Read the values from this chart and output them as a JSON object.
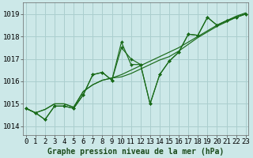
{
  "xlabel": "Graphe pression niveau de la mer (hPa)",
  "background_color": "#cce8e8",
  "line_color": "#1a6b1a",
  "grid_color": "#aacece",
  "x_ticks": [
    0,
    1,
    2,
    3,
    4,
    5,
    6,
    7,
    8,
    9,
    10,
    11,
    12,
    13,
    14,
    15,
    16,
    17,
    18,
    19,
    20,
    21,
    22,
    23
  ],
  "ylim": [
    1013.6,
    1019.5
  ],
  "xlim": [
    -0.3,
    23.3
  ],
  "series": [
    [
      1014.8,
      1014.6,
      1014.3,
      1014.9,
      1014.9,
      1014.8,
      1015.4,
      1016.3,
      1016.4,
      1016.05,
      1017.5,
      1017.0,
      1016.75,
      1015.0,
      1016.3,
      1016.9,
      1017.3,
      1018.1,
      1018.05,
      1018.85,
      1018.5,
      1018.7,
      1018.85,
      1019.0
    ],
    [
      1014.8,
      1014.6,
      1014.3,
      1014.9,
      1014.9,
      1014.8,
      1015.4,
      1016.3,
      1016.4,
      1016.05,
      1017.75,
      1016.75,
      1016.75,
      1015.0,
      1016.3,
      1016.9,
      1017.3,
      1018.1,
      1018.05,
      1018.85,
      1018.5,
      1018.7,
      1018.85,
      1019.0
    ],
    [
      1014.8,
      1014.6,
      1014.75,
      1015.0,
      1015.0,
      1014.85,
      1015.55,
      1015.85,
      1016.05,
      1016.15,
      1016.2,
      1016.35,
      1016.55,
      1016.75,
      1016.95,
      1017.1,
      1017.35,
      1017.65,
      1017.95,
      1018.2,
      1018.45,
      1018.65,
      1018.85,
      1019.0
    ],
    [
      1014.8,
      1014.6,
      1014.75,
      1015.0,
      1015.0,
      1014.85,
      1015.55,
      1015.85,
      1016.05,
      1016.15,
      1016.3,
      1016.5,
      1016.7,
      1016.9,
      1017.1,
      1017.3,
      1017.5,
      1017.75,
      1018.0,
      1018.25,
      1018.5,
      1018.7,
      1018.9,
      1019.05
    ]
  ],
  "has_markers": [
    true,
    true,
    false,
    false
  ],
  "yticks": [
    1014,
    1015,
    1016,
    1017,
    1018,
    1019
  ],
  "tick_fontsize": 6.5,
  "xlabel_fontsize": 7.0
}
